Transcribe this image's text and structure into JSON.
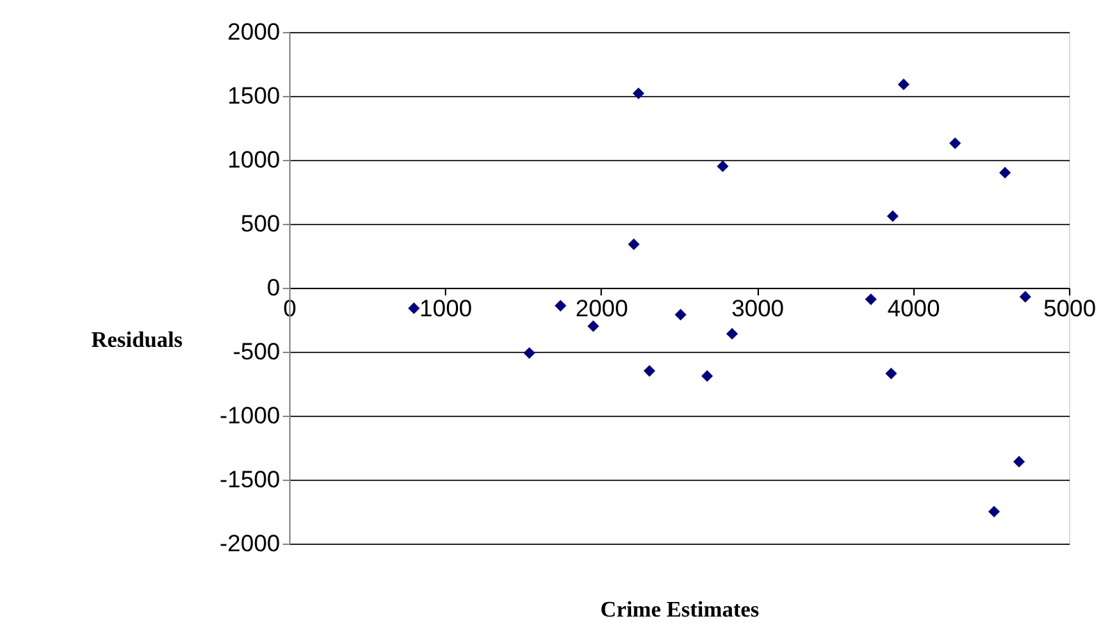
{
  "chart_data": {
    "type": "scatter",
    "xlabel": "Crime Estimates",
    "ylabel": "Residuals",
    "x": [
      800,
      1540,
      1740,
      1950,
      2240,
      2210,
      2310,
      2510,
      2680,
      2780,
      2840,
      3730,
      3870,
      3860,
      3940,
      4270,
      4590,
      4720,
      4680,
      4520
    ],
    "series": [
      {
        "color": "#000080",
        "values": [
          -160,
          -510,
          -140,
          -300,
          1520,
          340,
          -650,
          -210,
          -690,
          950,
          -360,
          -90,
          560,
          -670,
          1590,
          1130,
          900,
          -70,
          -1360,
          -1750
        ]
      }
    ],
    "xlim": [
      0,
      5000
    ],
    "xticks": [
      0,
      1000,
      2000,
      3000,
      4000,
      5000
    ],
    "ylim": [
      -2000,
      2000
    ],
    "yticks": [
      -2000,
      -1500,
      -1000,
      -500,
      0,
      500,
      1000,
      1500,
      2000
    ],
    "grid": "y",
    "marker": "diamond",
    "legend": false
  }
}
